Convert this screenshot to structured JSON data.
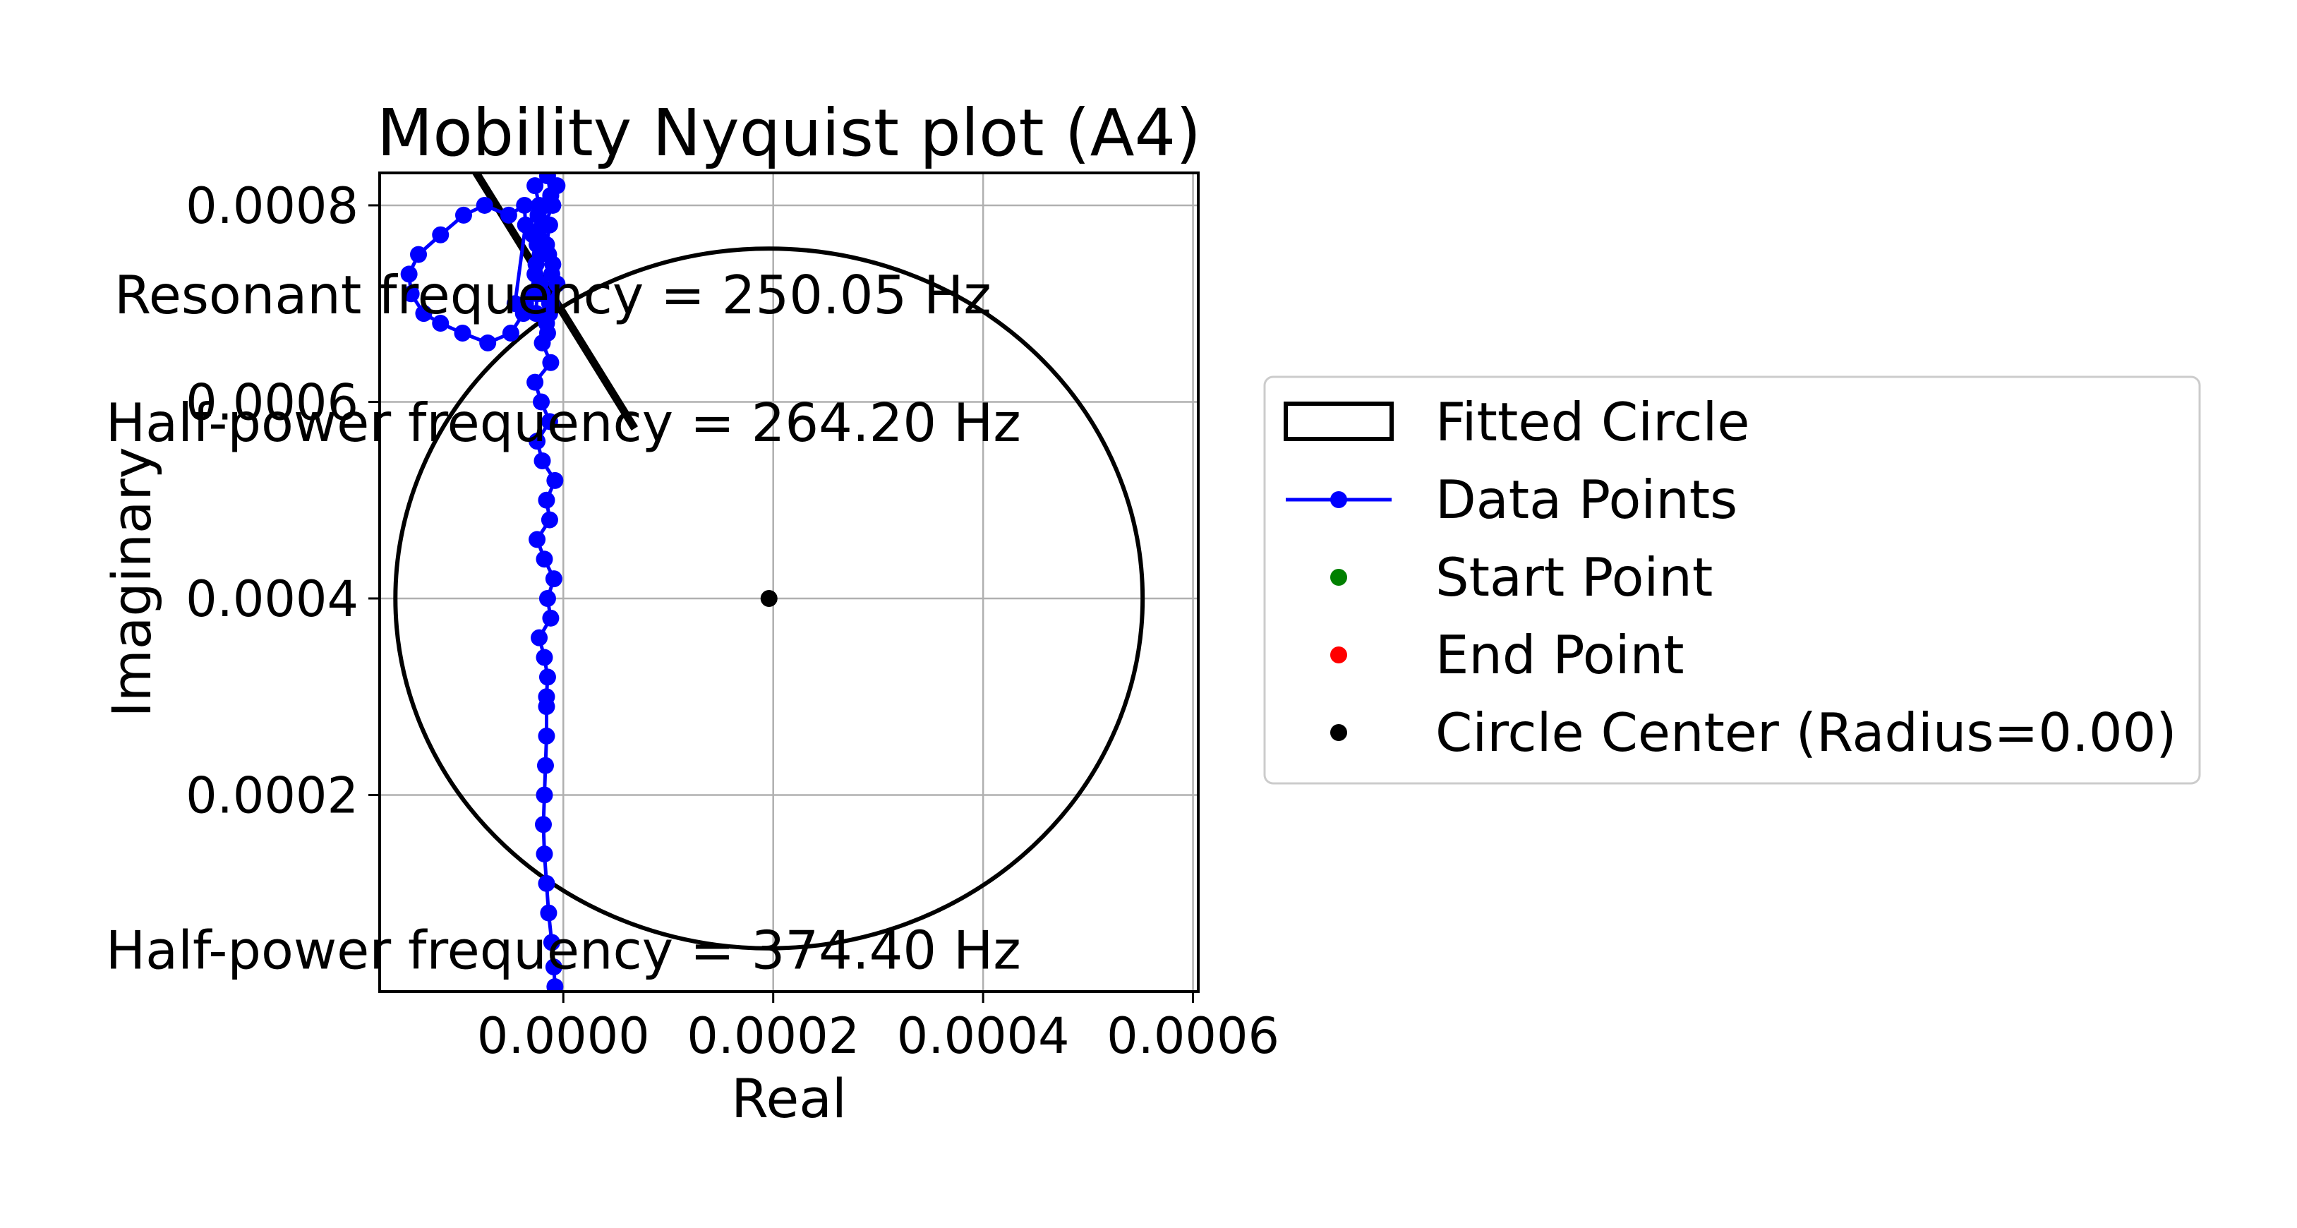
{
  "chart_data": {
    "type": "scatter",
    "title": "Mobility Nyquist plot (A4)",
    "xlabel": "Real",
    "ylabel": "Imaginary",
    "xlim": [
      -0.000175,
      0.000605
    ],
    "ylim": [
      0.0,
      0.000833
    ],
    "grid": true,
    "legend_placement": "outside right",
    "x_ticks": [
      {
        "value": 0.0,
        "label": "0.0000"
      },
      {
        "value": 0.0002,
        "label": "0.0002"
      },
      {
        "value": 0.0004,
        "label": "0.0004"
      },
      {
        "value": 0.0006,
        "label": "0.0006"
      }
    ],
    "y_ticks": [
      {
        "value": 0.0002,
        "label": "0.0002"
      },
      {
        "value": 0.0004,
        "label": "0.0004"
      },
      {
        "value": 0.0006,
        "label": "0.0006"
      },
      {
        "value": 0.0008,
        "label": "0.0008"
      }
    ],
    "fitted_circle": {
      "name": "Fitted Circle",
      "center": [
        0.000196,
        0.0004
      ],
      "radius": 0.000356,
      "color": "#000000"
    },
    "circle_center": {
      "name": "Circle Center (Radius=0.00)",
      "point": [
        0.000196,
        0.0004
      ],
      "color": "#000000"
    },
    "fit_line": {
      "points": [
        [
          -8.7e-05,
          0.00084
        ],
        [
          6.8e-05,
          0.000573
        ]
      ],
      "color": "#000000"
    },
    "start_point": {
      "name": "Start Point",
      "color": "#008000"
    },
    "end_point": {
      "name": "End Point",
      "color": "#ff0000"
    },
    "series": [
      {
        "name": "Data Points",
        "color": "#0000ff",
        "x": [
          -8e-06,
          -9e-06,
          -1.1e-05,
          -1.4e-05,
          -1.6e-05,
          -1.8e-05,
          -1.9e-05,
          -1.8e-05,
          -1.7e-05,
          -1.6e-05,
          -1.6e-05,
          -1.6e-05,
          -1.5e-05,
          -1.8e-05,
          -2.3e-05,
          -1.2e-05,
          -1.5e-05,
          -9e-06,
          -1.8e-05,
          -2.5e-05,
          -1.3e-05,
          -1.6e-05,
          -8e-06,
          -2e-05,
          -2.5e-05,
          -1.3e-05,
          -2.1e-05,
          -2.7e-05,
          -1.2e-05,
          -2e-05,
          -1.6e-05,
          -1.1e-05,
          -2.2e-05,
          -2.6e-05,
          -1.6e-05,
          -1.3e-05,
          -2.3e-05,
          -2.7e-05,
          -1.5e-05,
          -1.2e-05,
          -2.4e-05,
          -2.4e-05,
          -1.4e-05,
          -1.1e-05,
          -2.5e-05,
          -2.6e-05,
          -1.5e-05,
          -1.3e-05,
          -2e-05,
          -3.6e-05,
          -4.6e-05,
          -3.6e-05,
          -3.7e-05,
          -5.2e-05,
          -7.5e-05,
          -9.5e-05,
          -0.000117,
          -0.000138,
          -0.000147,
          -0.000145,
          -0.000133,
          -0.000117,
          -9.6e-05,
          -7.2e-05,
          -5e-05,
          -3.8e-05,
          -3.1e-05,
          -2.7e-05,
          -2.2e-05,
          -2.9e-05,
          -2.4e-05,
          -1.7e-05,
          -1.2e-05,
          -6e-06,
          -1e-05,
          -1.8e-05,
          -2.5e-05,
          -1e-05,
          -6e-06,
          -1.3e-05
        ],
        "y": [
          5e-06,
          2.5e-05,
          5e-05,
          8e-05,
          0.00011,
          0.00014,
          0.00017,
          0.0002,
          0.00023,
          0.00026,
          0.00029,
          0.0003,
          0.00032,
          0.00034,
          0.00036,
          0.00038,
          0.0004,
          0.00042,
          0.00044,
          0.00046,
          0.00048,
          0.0005,
          0.00052,
          0.00054,
          0.00056,
          0.00058,
          0.0006,
          0.00062,
          0.00064,
          0.00066,
          0.00068,
          0.0007,
          0.00072,
          0.00074,
          0.00076,
          0.00078,
          0.0008,
          0.00082,
          0.00083,
          0.00081,
          0.00079,
          0.00077,
          0.00075,
          0.00073,
          0.00071,
          0.00069,
          0.00067,
          0.00069,
          0.00071,
          0.0007,
          0.0007,
          0.00078,
          0.0008,
          0.00079,
          0.0008,
          0.00079,
          0.00077,
          0.00075,
          0.00073,
          0.00071,
          0.00069,
          0.00068,
          0.00067,
          0.00066,
          0.00067,
          0.00069,
          0.00071,
          0.00073,
          0.00075,
          0.00077,
          0.00079,
          0.0008,
          0.00081,
          0.00082,
          0.0008,
          0.00078,
          0.00076,
          0.00074,
          0.00072,
          0.0007
        ]
      }
    ],
    "annotations": [
      {
        "text": "Resonant frequency = 250.05 Hz",
        "x": -1e-05,
        "y": 0.00069
      },
      {
        "text": "Half-power frequency = 264.20 Hz",
        "x": 0.0,
        "y": 0.00056
      },
      {
        "text": "Half-power frequency = 374.40 Hz",
        "x": 0.0,
        "y": 2.35e-05
      }
    ]
  }
}
